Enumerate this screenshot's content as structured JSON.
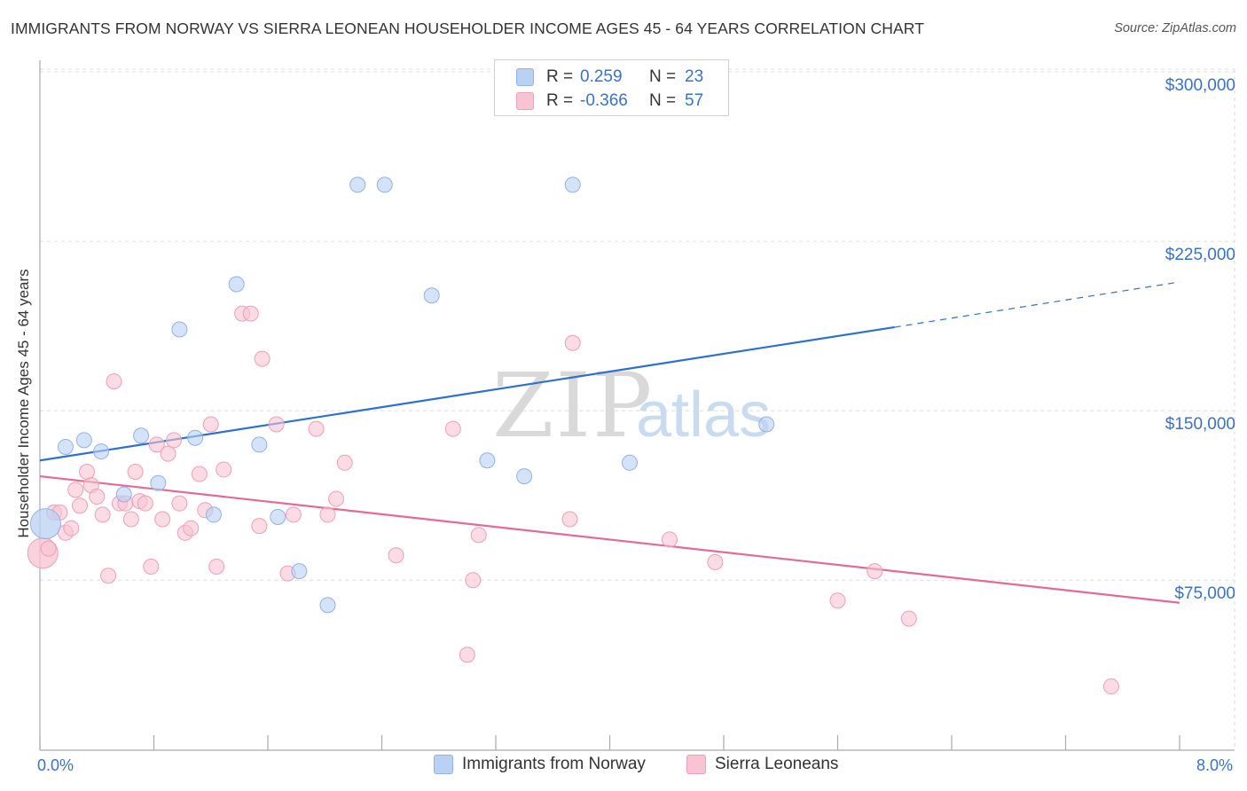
{
  "header": {
    "title": "IMMIGRANTS FROM NORWAY VS SIERRA LEONEAN HOUSEHOLDER INCOME AGES 45 - 64 YEARS CORRELATION CHART",
    "source": "Source: ZipAtlas.com"
  },
  "watermark": {
    "zip": "ZIP",
    "atlas": "atlas"
  },
  "legend": {
    "rows": [
      {
        "r_label": "R =",
        "r_value": "0.259",
        "n_label": "N =",
        "n_value": "23"
      },
      {
        "r_label": "R =",
        "r_value": "-0.366",
        "n_label": "N =",
        "n_value": "57"
      }
    ]
  },
  "colors": {
    "norway_fill": "#b9d1f3",
    "norway_stroke": "#8fb3e6",
    "norway_line": "#2f6fcf",
    "sierra_fill": "#f8c3d2",
    "sierra_stroke": "#ee9fb8",
    "sierra_line": "#e46a96",
    "accent_text": "#3a72c4",
    "grid": "#dddddd"
  },
  "chart_data": {
    "type": "scatter",
    "title": "IMMIGRANTS FROM NORWAY VS SIERRA LEONEAN HOUSEHOLDER INCOME AGES 45 - 64 YEARS CORRELATION CHART",
    "xlabel": "",
    "ylabel": "Householder Income Ages 45 - 64 years",
    "xlim": [
      0,
      8
    ],
    "ylim": [
      0,
      310000
    ],
    "x_tick_labels": [
      "0.0%",
      "8.0%"
    ],
    "y_ticks": [
      75000,
      150000,
      225000,
      300000
    ],
    "y_tick_labels": [
      "$75,000",
      "$150,000",
      "$225,000",
      "$300,000"
    ],
    "grid": true,
    "legend_position": "bottom",
    "series": [
      {
        "name": "Immigrants from Norway",
        "r": 0.259,
        "n": 23,
        "trend": {
          "x0": 0.0,
          "y0": 128000,
          "x1": 6.0,
          "y1": 187000,
          "x_dash_end": 8.0,
          "y_dash_end": 207000
        },
        "points": [
          [
            0.04,
            100000,
            "large"
          ],
          [
            0.18,
            134000
          ],
          [
            0.31,
            137000
          ],
          [
            0.43,
            132000
          ],
          [
            0.59,
            113000
          ],
          [
            0.71,
            139000
          ],
          [
            0.83,
            118000
          ],
          [
            0.98,
            186000
          ],
          [
            1.09,
            138000
          ],
          [
            1.22,
            104000
          ],
          [
            1.38,
            206000
          ],
          [
            1.54,
            135000
          ],
          [
            1.67,
            103000
          ],
          [
            1.82,
            79000
          ],
          [
            2.02,
            64000
          ],
          [
            2.23,
            250000
          ],
          [
            2.42,
            250000
          ],
          [
            2.75,
            201000
          ],
          [
            3.14,
            128000
          ],
          [
            3.4,
            121000
          ],
          [
            3.74,
            250000
          ],
          [
            4.14,
            127000
          ],
          [
            5.1,
            144000
          ]
        ]
      },
      {
        "name": "Sierra Leoneans",
        "r": -0.366,
        "n": 57,
        "trend": {
          "x0": 0.0,
          "y0": 121000,
          "x1": 8.0,
          "y1": 65000
        },
        "points": [
          [
            0.02,
            87000,
            "large"
          ],
          [
            0.06,
            89000
          ],
          [
            0.1,
            105000
          ],
          [
            0.14,
            105000
          ],
          [
            0.18,
            96000
          ],
          [
            0.22,
            98000
          ],
          [
            0.25,
            115000
          ],
          [
            0.28,
            108000
          ],
          [
            0.33,
            123000
          ],
          [
            0.36,
            117000
          ],
          [
            0.4,
            112000
          ],
          [
            0.44,
            104000
          ],
          [
            0.48,
            77000
          ],
          [
            0.52,
            163000
          ],
          [
            0.56,
            109000
          ],
          [
            0.6,
            109000
          ],
          [
            0.64,
            102000
          ],
          [
            0.67,
            123000
          ],
          [
            0.7,
            110000
          ],
          [
            0.74,
            109000
          ],
          [
            0.78,
            81000
          ],
          [
            0.82,
            135000
          ],
          [
            0.86,
            102000
          ],
          [
            0.9,
            131000
          ],
          [
            0.94,
            137000
          ],
          [
            0.98,
            109000
          ],
          [
            1.02,
            96000
          ],
          [
            1.06,
            98000
          ],
          [
            1.12,
            122000
          ],
          [
            1.16,
            106000
          ],
          [
            1.2,
            144000
          ],
          [
            1.24,
            81000
          ],
          [
            1.29,
            124000
          ],
          [
            1.42,
            193000
          ],
          [
            1.48,
            193000
          ],
          [
            1.54,
            99000
          ],
          [
            1.56,
            173000
          ],
          [
            1.66,
            144000
          ],
          [
            1.74,
            78000
          ],
          [
            1.78,
            104000
          ],
          [
            1.94,
            142000
          ],
          [
            2.02,
            104000
          ],
          [
            2.08,
            111000
          ],
          [
            2.14,
            127000
          ],
          [
            2.5,
            86000
          ],
          [
            2.9,
            142000
          ],
          [
            3.0,
            42000
          ],
          [
            3.04,
            75000
          ],
          [
            3.08,
            95000
          ],
          [
            3.72,
            102000
          ],
          [
            3.74,
            180000
          ],
          [
            4.42,
            93000
          ],
          [
            4.74,
            83000
          ],
          [
            5.6,
            66000
          ],
          [
            5.86,
            79000
          ],
          [
            6.1,
            58000
          ],
          [
            7.52,
            28000
          ]
        ]
      }
    ]
  },
  "bottom_legend": [
    {
      "label": "Immigrants from Norway"
    },
    {
      "label": "Sierra Leoneans"
    }
  ]
}
